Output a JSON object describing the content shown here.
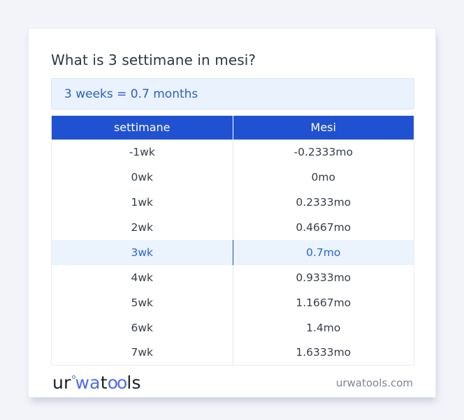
{
  "main": {
    "title": "What is 3 settimane in mesi?",
    "answer": "3 weeks = 0.7 months"
  },
  "table": {
    "headers": [
      "settimane",
      "Mesi"
    ],
    "highlighted_row_index": 4,
    "rows": [
      [
        "-1wk",
        "-0.2333mo"
      ],
      [
        "0wk",
        "0mo"
      ],
      [
        "1wk",
        "0.2333mo"
      ],
      [
        "2wk",
        "0.4667mo"
      ],
      [
        "3wk",
        "0.7mo"
      ],
      [
        "4wk",
        "0.9333mo"
      ],
      [
        "5wk",
        "1.1667mo"
      ],
      [
        "6wk",
        "1.4mo"
      ],
      [
        "7wk",
        "1.6333mo"
      ]
    ]
  },
  "footer": {
    "logo": {
      "part_ur": "ur",
      "part_wa": "wa",
      "part_t": "t",
      "part_oo": "oo",
      "part_ls": "ls"
    },
    "website": "urwatools.com"
  },
  "colors": {
    "accent_blue": "#2051d0",
    "highlight_bg": "#ebf3fd",
    "highlight_text": "#2a64d8",
    "answer_bg": "#eaf2fd",
    "answer_text": "#2a5fc8",
    "logo_blue": "#4f6bee",
    "page_bg": "#f3f4f9"
  }
}
